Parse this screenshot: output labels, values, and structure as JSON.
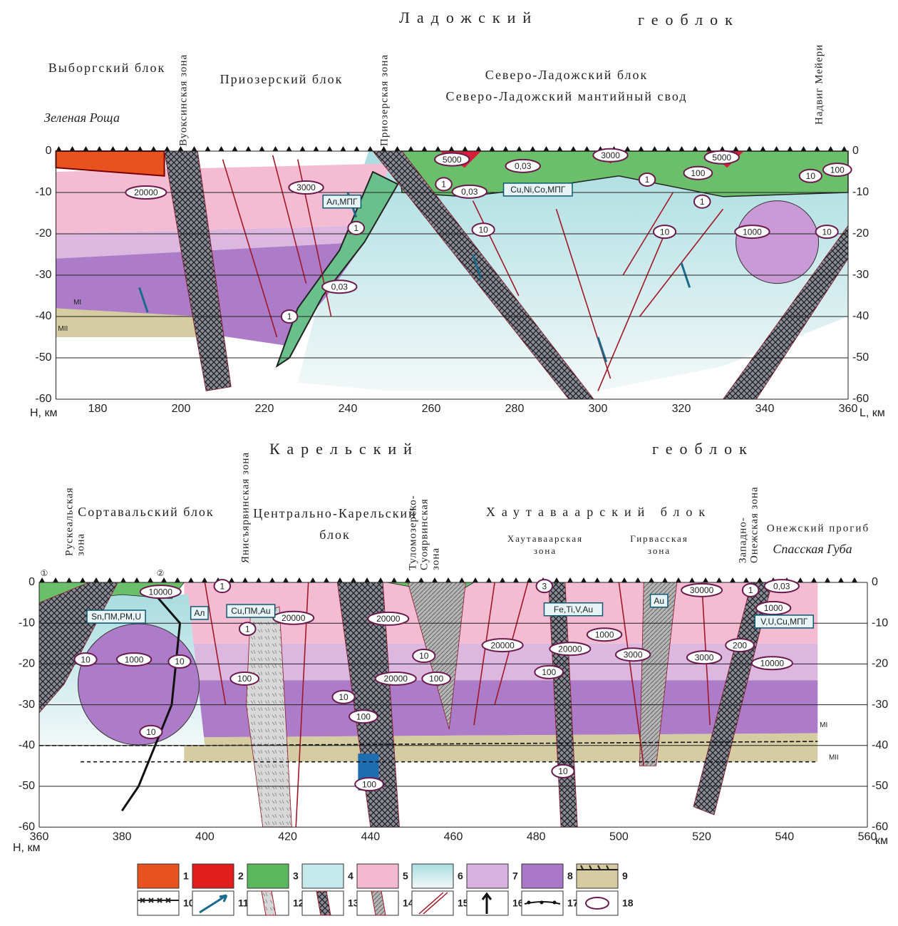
{
  "top": {
    "title": [
      "Ладожский",
      "геоблок"
    ],
    "labels": [
      [
        "Выборгский блок"
      ],
      [
        "Приозерский блок"
      ],
      [
        "Северо-Ладожский блок",
        "Северо-Ладожский мантийный свод"
      ]
    ],
    "zones": [
      [
        "Вуоксинская зона"
      ],
      [
        "Приозерская зона"
      ],
      [
        "Надвиг Мейери"
      ]
    ],
    "site": "Зеленая Роща",
    "ovals": [
      "5000",
      "0,03",
      "3000",
      "5000",
      "100",
      "10",
      "100",
      "20000",
      "3000",
      "1",
      "0,03",
      "1",
      "1",
      "1",
      "10",
      "10",
      "1000",
      "10",
      "0,03",
      "1"
    ],
    "boxes": [
      "Ал,МПГ",
      "Cu,Ni,Co,МПГ"
    ],
    "moho": [
      "MI",
      "MII"
    ],
    "yticks": [
      0,
      -10,
      -20,
      -30,
      -40,
      -50,
      -60
    ],
    "xticks": [
      180,
      200,
      220,
      240,
      260,
      280,
      300,
      320,
      340,
      360
    ],
    "y_axis_label": "Н, км",
    "x_axis_label": "L, км"
  },
  "bottom": {
    "title": [
      "Карельский",
      "геоблок"
    ],
    "labels": [
      [
        "Сортавальский блок"
      ],
      [
        "Центрально-Карельский",
        "блок"
      ],
      [
        "Хаутаваарский блок"
      ],
      [
        "Хаутаваарская",
        "зона"
      ],
      [
        "Гирвасская",
        "зона"
      ],
      [
        "Онежский прогиб"
      ]
    ],
    "zones": [
      [
        "Рускеальская",
        "зона"
      ],
      [
        "Янисъярвинская зона"
      ],
      [
        "Туломозерско-",
        "Суоярвинская",
        "зона"
      ],
      [
        "Западно-",
        "Онежская зона"
      ]
    ],
    "site": "Спасская Губа",
    "markers": [
      "①",
      "②"
    ],
    "ovals": [
      "10000",
      "1",
      "1",
      "20000",
      "20000",
      "30000",
      "1",
      "0,03",
      "3",
      "1000",
      "1000",
      "20000",
      "20000",
      "3000",
      "3000",
      "200",
      "10000",
      "10",
      "1000",
      "10",
      "10",
      "100",
      "20000",
      "100",
      "100",
      "10",
      "100",
      "10",
      "10",
      "100"
    ],
    "boxes": [
      "Sn,ПМ,PM,U",
      "Ал",
      "Cu,ПМ,Au",
      "Fe,Ti,V,Au",
      "Au",
      "V,U,Cu,МПГ"
    ],
    "moho": [
      "MI",
      "MII"
    ],
    "yticks": [
      0,
      -10,
      -20,
      -30,
      -40,
      -50,
      -60
    ],
    "xticks": [
      360,
      380,
      400,
      420,
      440,
      460,
      480,
      500,
      520,
      540,
      560
    ],
    "y_axis_label": "Н, км",
    "x_axis_label": "км"
  },
  "legend": [
    1,
    2,
    3,
    4,
    5,
    6,
    7,
    8,
    9,
    10,
    11,
    12,
    13,
    14,
    15,
    16,
    17,
    18
  ]
}
